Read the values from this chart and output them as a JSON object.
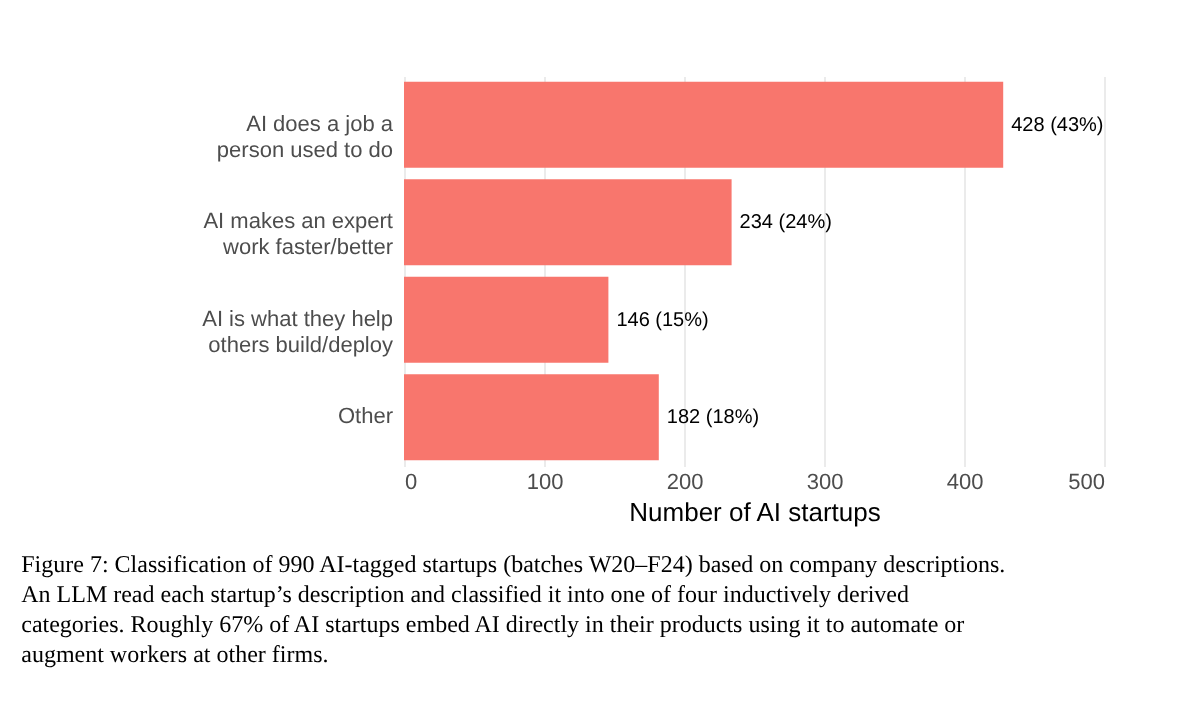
{
  "chart_data": {
    "type": "bar",
    "orientation": "horizontal",
    "categories": [
      "AI does a job a person used to do",
      "AI makes an expert work faster/better",
      "AI is what they help others build/deploy",
      "Other"
    ],
    "values": [
      428,
      234,
      146,
      182
    ],
    "value_labels": [
      "428 (43%)",
      "234 (24%)",
      "146 (15%)",
      "182 (18%)"
    ],
    "color": "#f8766d",
    "xlabel": "Number of AI startups",
    "xlim": [
      0,
      500
    ],
    "xticks": [
      0,
      100,
      200,
      300,
      400,
      500
    ],
    "grid": "x",
    "annotations": [
      "Figure 7:  Classification of 990 AI-tagged startups (batches W20–F24) based on company descriptions.  An LLM read each startup’s description and classified it into one of four inductively derived categories.  Roughly 67% of AI startups embed AI directly in their products using it to automate or augment workers at other firms."
    ]
  }
}
